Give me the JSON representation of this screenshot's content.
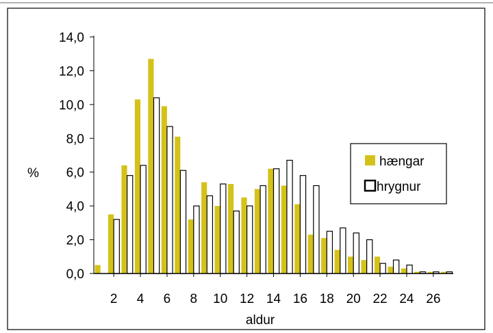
{
  "chart_data": {
    "type": "bar",
    "xlabel": "aldur",
    "ylabel": "%",
    "ylim": [
      0,
      14
    ],
    "yticks": [
      "0,0",
      "2,0",
      "4,0",
      "6,0",
      "8,0",
      "10,0",
      "12,0",
      "14,0"
    ],
    "ytick_values": [
      0,
      2,
      4,
      6,
      8,
      10,
      12,
      14
    ],
    "categories": [
      1,
      2,
      3,
      4,
      5,
      6,
      7,
      8,
      9,
      10,
      11,
      12,
      13,
      14,
      15,
      16,
      17,
      18,
      19,
      20,
      21,
      22,
      23,
      24,
      25,
      26,
      27
    ],
    "xtick_labels": [
      "2",
      "4",
      "6",
      "8",
      "10",
      "12",
      "14",
      "16",
      "18",
      "20",
      "22",
      "24",
      "26"
    ],
    "xtick_values": [
      2,
      4,
      6,
      8,
      10,
      12,
      14,
      16,
      18,
      20,
      22,
      24,
      26
    ],
    "grid": false,
    "legend_position": "right",
    "series": [
      {
        "name": "hængar",
        "color": "#d4c21a",
        "fill": "solid",
        "values": [
          0.5,
          3.5,
          6.4,
          10.3,
          12.7,
          9.9,
          8.1,
          3.2,
          5.4,
          4.0,
          5.3,
          4.5,
          5.0,
          6.2,
          5.2,
          4.1,
          2.3,
          2.1,
          1.4,
          1.0,
          0.8,
          1.0,
          0.4,
          0.3,
          0.1,
          0.1,
          0.1
        ]
      },
      {
        "name": "hrygnur",
        "color": "#ffffff",
        "fill": "outline",
        "values": [
          0.0,
          3.2,
          5.8,
          6.4,
          10.4,
          8.7,
          6.1,
          4.0,
          4.6,
          5.3,
          3.7,
          4.0,
          5.2,
          6.2,
          6.7,
          5.8,
          5.2,
          2.5,
          2.7,
          2.4,
          2.0,
          0.6,
          0.8,
          0.5,
          0.1,
          0.1,
          0.1
        ]
      }
    ]
  }
}
